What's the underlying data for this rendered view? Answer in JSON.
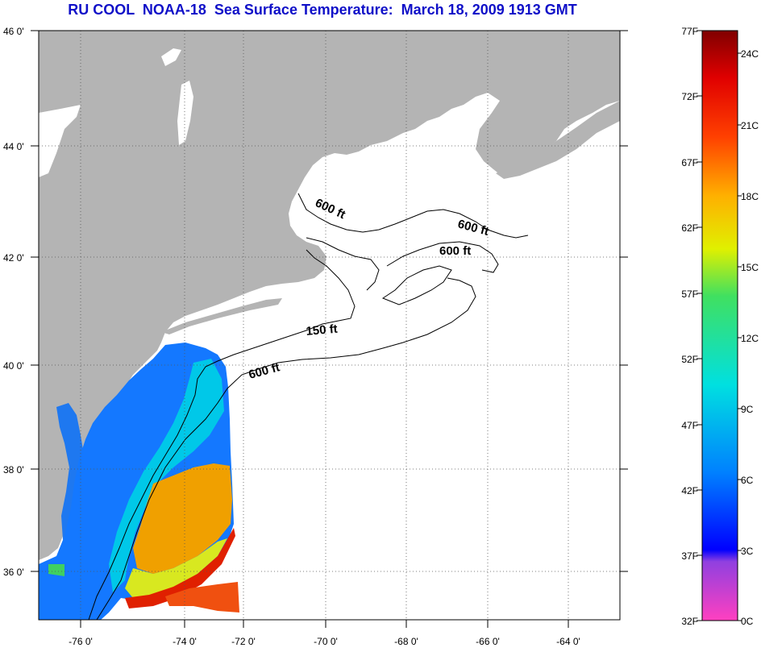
{
  "title": "RU COOL  NOAA-18  Sea Surface Temperature:  March 18, 2009 1913 GMT",
  "map": {
    "lat_labels": [
      "46 0'",
      "44 0'",
      "42 0'",
      "40 0'",
      "38 0'",
      "36 0'"
    ],
    "lon_labels": [
      "-76 0'",
      "-74 0'",
      "-72 0'",
      "-70 0'",
      "-68 0'",
      "-66 0'",
      "-64 0'"
    ],
    "lat_range": [
      35,
      46
    ],
    "lon_range": [
      -77,
      -63
    ],
    "grid": true,
    "contour_labels": [
      "600 ft",
      "600 ft",
      "600 ft",
      "150 ft",
      "600 ft"
    ],
    "colors": {
      "land": "#b4b4b4",
      "ocean_no_data": "#ffffff"
    }
  },
  "colorbar": {
    "fahrenheit_labels": [
      "77F",
      "72F",
      "67F",
      "62F",
      "57F",
      "52F",
      "47F",
      "42F",
      "37F",
      "32F"
    ],
    "celsius_labels": [
      "24C",
      "21C",
      "18C",
      "15C",
      "12C",
      "9C",
      "6C",
      "3C",
      "0C"
    ],
    "colors": [
      "#ff40c0",
      "#9040e0",
      "#0000ff",
      "#00a0ff",
      "#00e0e0",
      "#40e080",
      "#e0f000",
      "#ffb000",
      "#ff4000",
      "#e00000",
      "#800000"
    ]
  }
}
